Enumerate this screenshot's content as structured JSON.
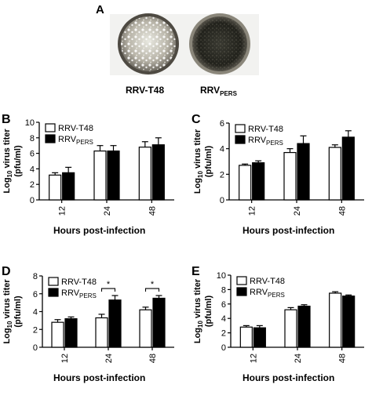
{
  "panel_a": {
    "letter": "A",
    "dish1_label": "RRV-T48",
    "dish2_label_main": "RRV",
    "dish2_label_sub": "PERS"
  },
  "axis_text": {
    "ylabel_main": "Log",
    "ylabel_sub": "10",
    "ylabel_rest": " virus titer",
    "ylabel_line2": "(pfu/ml)",
    "xlabel": "Hours post-infection"
  },
  "legend": [
    {
      "main": "RRV-T48",
      "sub": ""
    },
    {
      "main": "RRV",
      "sub": "PERS"
    }
  ],
  "colors": {
    "series1_fill": "#ffffff",
    "series2_fill": "#000000",
    "axis": "#000000"
  },
  "chart_data": [
    {
      "panel": "B",
      "type": "bar",
      "categories": [
        "12",
        "24",
        "48"
      ],
      "ylim": [
        0,
        10
      ],
      "yticks": [
        "0",
        "2",
        "4",
        "6",
        "8",
        "10"
      ],
      "series": [
        {
          "name": "RRV-T48",
          "values": [
            3.2,
            6.3,
            6.8
          ],
          "errors": [
            0.3,
            0.7,
            0.7
          ]
        },
        {
          "name": "RRVPERS",
          "values": [
            3.5,
            6.3,
            7.1
          ],
          "errors": [
            0.7,
            0.7,
            0.9
          ]
        }
      ],
      "significance": []
    },
    {
      "panel": "C",
      "type": "bar",
      "categories": [
        "12",
        "24",
        "48"
      ],
      "ylim": [
        0,
        6
      ],
      "yticks": [
        "0",
        "2",
        "4",
        "6"
      ],
      "series": [
        {
          "name": "RRV-T48",
          "values": [
            2.7,
            3.7,
            4.1
          ],
          "errors": [
            0.1,
            0.3,
            0.2
          ]
        },
        {
          "name": "RRVPERS",
          "values": [
            2.9,
            4.4,
            4.9
          ],
          "errors": [
            0.15,
            0.6,
            0.5
          ]
        }
      ],
      "significance": []
    },
    {
      "panel": "D",
      "type": "bar",
      "categories": [
        "12",
        "24",
        "48"
      ],
      "ylim": [
        0,
        8
      ],
      "yticks": [
        "0",
        "2",
        "4",
        "6",
        "8"
      ],
      "series": [
        {
          "name": "RRV-T48",
          "values": [
            2.8,
            3.3,
            4.2
          ],
          "errors": [
            0.3,
            0.4,
            0.3
          ]
        },
        {
          "name": "RRVPERS",
          "values": [
            3.2,
            5.3,
            5.5
          ],
          "errors": [
            0.2,
            0.5,
            0.3
          ]
        }
      ],
      "significance": [
        {
          "category": "24",
          "label": "*"
        },
        {
          "category": "48",
          "label": "*"
        }
      ]
    },
    {
      "panel": "E",
      "type": "bar",
      "categories": [
        "12",
        "24",
        "48"
      ],
      "ylim": [
        0,
        10
      ],
      "yticks": [
        "0",
        "2",
        "4",
        "6",
        "8",
        "10"
      ],
      "series": [
        {
          "name": "RRV-T48",
          "values": [
            2.8,
            5.2,
            7.5
          ],
          "errors": [
            0.2,
            0.3,
            0.2
          ]
        },
        {
          "name": "RRVPERS",
          "values": [
            2.7,
            5.7,
            7.1
          ],
          "errors": [
            0.3,
            0.2,
            0.15
          ]
        }
      ],
      "significance": []
    }
  ]
}
